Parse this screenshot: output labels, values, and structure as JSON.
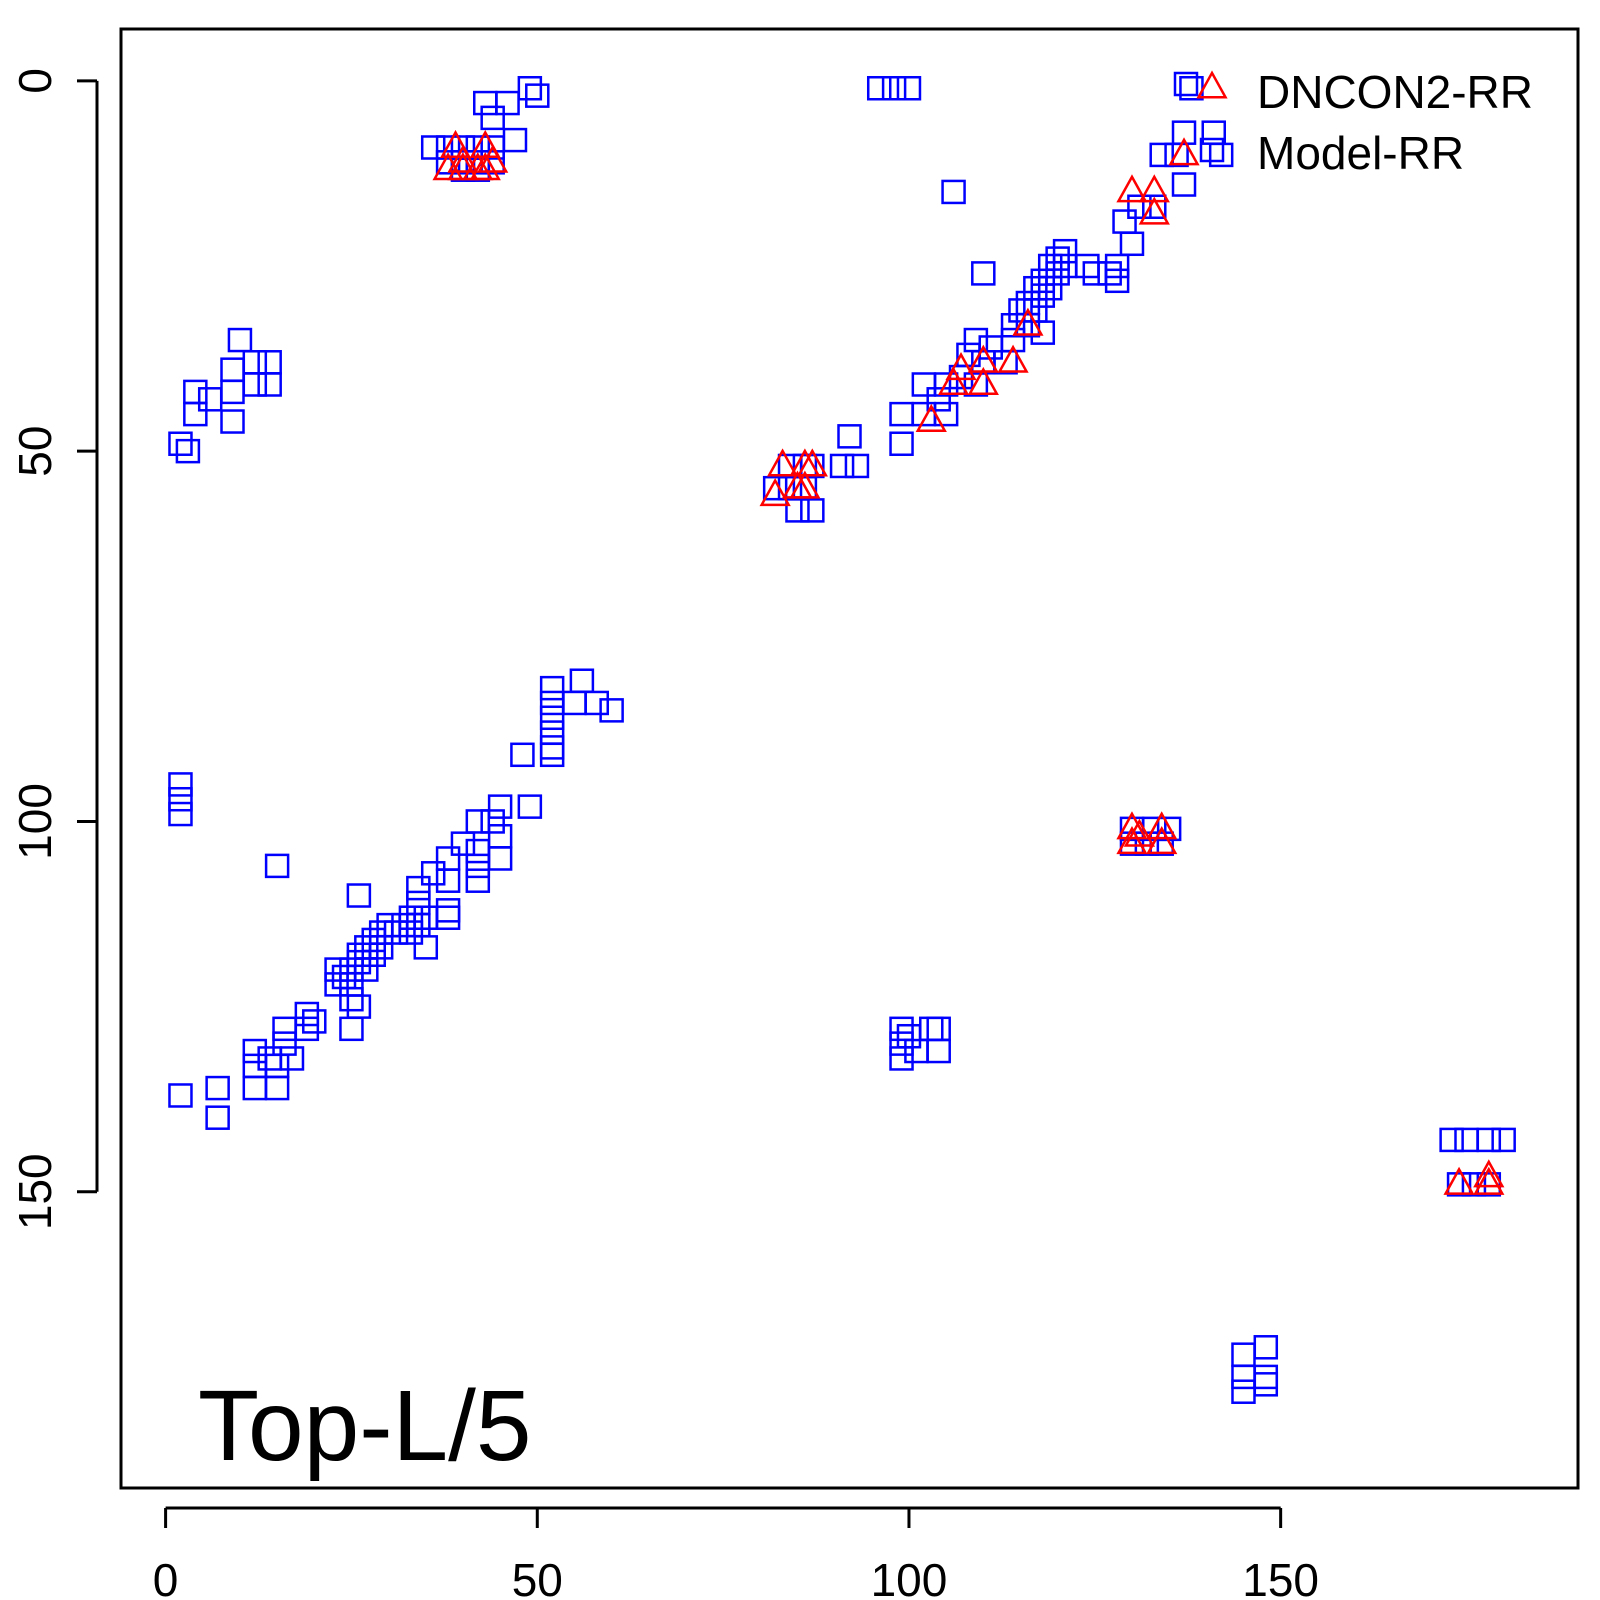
{
  "chart_data": {
    "type": "scatter",
    "title": "",
    "annotation": "Top-L/5",
    "xlabel": "",
    "ylabel": "",
    "xlim": [
      -6,
      190
    ],
    "ylim": [
      190,
      -7
    ],
    "y_reversed": true,
    "x_ticks": [
      0,
      50,
      100,
      150
    ],
    "y_ticks": [
      0,
      50,
      100,
      150
    ],
    "x_tick_labels": [
      "0",
      "50",
      "100",
      "150"
    ],
    "y_tick_labels": [
      "0",
      "50",
      "100",
      "150"
    ],
    "grid": false,
    "legend": {
      "position": "top-right",
      "entries": [
        "DNCON2-RR",
        "Model-RR"
      ]
    },
    "series": [
      {
        "name": "DNCON2-RR",
        "marker": "triangle",
        "color": "#ff0000",
        "points": [
          [
            39,
            9
          ],
          [
            40,
            11
          ],
          [
            43,
            9
          ],
          [
            44,
            11
          ],
          [
            38,
            12
          ],
          [
            42,
            12
          ],
          [
            40,
            12
          ],
          [
            43,
            12
          ],
          [
            83,
            52
          ],
          [
            86,
            52
          ],
          [
            87,
            52
          ],
          [
            82,
            56
          ],
          [
            85,
            55
          ],
          [
            86,
            55
          ],
          [
            103,
            46
          ],
          [
            106,
            41
          ],
          [
            107,
            39
          ],
          [
            110,
            38
          ],
          [
            110,
            41
          ],
          [
            114,
            38
          ],
          [
            116,
            33
          ],
          [
            130,
            15
          ],
          [
            133,
            15
          ],
          [
            133,
            18
          ],
          [
            137,
            10
          ],
          [
            130,
            101
          ],
          [
            131,
            102
          ],
          [
            134,
            101
          ],
          [
            134,
            103
          ],
          [
            130,
            103
          ],
          [
            174,
            149
          ],
          [
            178,
            148
          ],
          [
            178,
            149
          ]
        ]
      },
      {
        "name": "Model-RR",
        "marker": "square",
        "color": "#0000ff",
        "points": [
          [
            49,
            1
          ],
          [
            50,
            2
          ],
          [
            46,
            3
          ],
          [
            43,
            3
          ],
          [
            44,
            5
          ],
          [
            47,
            8
          ],
          [
            36,
            9
          ],
          [
            38,
            9
          ],
          [
            40,
            9
          ],
          [
            42,
            9
          ],
          [
            44,
            9
          ],
          [
            38,
            11
          ],
          [
            40,
            11
          ],
          [
            42,
            11
          ],
          [
            44,
            11
          ],
          [
            40,
            12
          ],
          [
            42,
            12
          ],
          [
            96,
            1
          ],
          [
            98,
            1
          ],
          [
            100,
            1
          ],
          [
            106,
            15
          ],
          [
            110,
            26
          ],
          [
            138,
            1
          ],
          [
            137,
            7
          ],
          [
            141,
            7
          ],
          [
            142,
            10
          ],
          [
            137,
            14
          ],
          [
            134,
            10
          ],
          [
            136,
            10
          ],
          [
            131,
            17
          ],
          [
            133,
            17
          ],
          [
            129,
            19
          ],
          [
            130,
            22
          ],
          [
            128,
            25
          ],
          [
            128,
            27
          ],
          [
            127,
            26
          ],
          [
            124,
            25
          ],
          [
            125,
            26
          ],
          [
            121,
            23
          ],
          [
            120,
            24
          ],
          [
            121,
            25
          ],
          [
            119,
            25
          ],
          [
            120,
            26
          ],
          [
            118,
            27
          ],
          [
            119,
            28
          ],
          [
            117,
            28
          ],
          [
            118,
            29
          ],
          [
            116,
            30
          ],
          [
            117,
            31
          ],
          [
            115,
            31
          ],
          [
            116,
            33
          ],
          [
            114,
            33
          ],
          [
            118,
            34
          ],
          [
            114,
            35
          ],
          [
            109,
            35
          ],
          [
            111,
            36
          ],
          [
            108,
            37
          ],
          [
            110,
            38
          ],
          [
            113,
            38
          ],
          [
            107,
            40
          ],
          [
            105,
            41
          ],
          [
            109,
            41
          ],
          [
            102,
            41
          ],
          [
            104,
            43
          ],
          [
            99,
            45
          ],
          [
            102,
            45
          ],
          [
            105,
            45
          ],
          [
            92,
            48
          ],
          [
            99,
            49
          ],
          [
            84,
            52
          ],
          [
            86,
            52
          ],
          [
            87,
            52
          ],
          [
            91,
            52
          ],
          [
            93,
            52
          ],
          [
            82,
            55
          ],
          [
            84,
            55
          ],
          [
            86,
            55
          ],
          [
            85,
            58
          ],
          [
            87,
            58
          ],
          [
            10,
            35
          ],
          [
            12,
            38
          ],
          [
            14,
            38
          ],
          [
            9,
            39
          ],
          [
            12,
            41
          ],
          [
            9,
            42
          ],
          [
            14,
            41
          ],
          [
            4,
            42
          ],
          [
            6,
            43
          ],
          [
            4,
            45
          ],
          [
            9,
            46
          ],
          [
            2,
            49
          ],
          [
            3,
            50
          ],
          [
            2,
            95
          ],
          [
            2,
            97
          ],
          [
            2,
            99
          ],
          [
            15,
            106
          ],
          [
            26,
            110
          ],
          [
            52,
            82
          ],
          [
            56,
            81
          ],
          [
            52,
            84
          ],
          [
            55,
            84
          ],
          [
            58,
            84
          ],
          [
            60,
            85
          ],
          [
            52,
            86
          ],
          [
            52,
            88
          ],
          [
            52,
            90
          ],
          [
            48,
            91
          ],
          [
            52,
            91
          ],
          [
            45,
            98
          ],
          [
            49,
            98
          ],
          [
            42,
            100
          ],
          [
            44,
            100
          ],
          [
            45,
            102
          ],
          [
            40,
            103
          ],
          [
            42,
            104
          ],
          [
            45,
            105
          ],
          [
            38,
            105
          ],
          [
            42,
            106
          ],
          [
            36,
            107
          ],
          [
            38,
            108
          ],
          [
            42,
            108
          ],
          [
            34,
            109
          ],
          [
            34,
            111
          ],
          [
            38,
            112
          ],
          [
            33,
            113
          ],
          [
            35,
            113
          ],
          [
            38,
            113
          ],
          [
            30,
            114
          ],
          [
            32,
            114
          ],
          [
            34,
            114
          ],
          [
            29,
            115
          ],
          [
            31,
            115
          ],
          [
            33,
            115
          ],
          [
            28,
            116
          ],
          [
            27,
            117
          ],
          [
            29,
            117
          ],
          [
            35,
            117
          ],
          [
            26,
            118
          ],
          [
            28,
            118
          ],
          [
            26,
            119
          ],
          [
            25,
            120
          ],
          [
            27,
            120
          ],
          [
            23,
            120
          ],
          [
            24,
            121
          ],
          [
            23,
            122
          ],
          [
            25,
            122
          ],
          [
            25,
            124
          ],
          [
            26,
            125
          ],
          [
            19,
            126
          ],
          [
            20,
            127
          ],
          [
            16,
            128
          ],
          [
            19,
            128
          ],
          [
            25,
            128
          ],
          [
            16,
            130
          ],
          [
            12,
            131
          ],
          [
            14,
            132
          ],
          [
            17,
            132
          ],
          [
            12,
            133
          ],
          [
            15,
            133
          ],
          [
            7,
            136
          ],
          [
            12,
            136
          ],
          [
            15,
            136
          ],
          [
            2,
            137
          ],
          [
            7,
            140
          ],
          [
            99,
            128
          ],
          [
            100,
            129
          ],
          [
            103,
            128
          ],
          [
            104,
            128
          ],
          [
            99,
            130
          ],
          [
            101,
            131
          ],
          [
            104,
            131
          ],
          [
            99,
            132
          ],
          [
            130,
            101
          ],
          [
            133,
            101
          ],
          [
            135,
            101
          ],
          [
            130,
            103
          ],
          [
            132,
            103
          ],
          [
            134,
            103
          ],
          [
            173,
            143
          ],
          [
            175,
            143
          ],
          [
            178,
            143
          ],
          [
            180,
            143
          ],
          [
            174,
            149
          ],
          [
            176,
            149
          ],
          [
            178,
            149
          ],
          [
            145,
            172
          ],
          [
            148,
            171
          ],
          [
            145,
            175
          ],
          [
            148,
            175
          ],
          [
            145,
            177
          ],
          [
            148,
            176
          ]
        ]
      }
    ]
  }
}
